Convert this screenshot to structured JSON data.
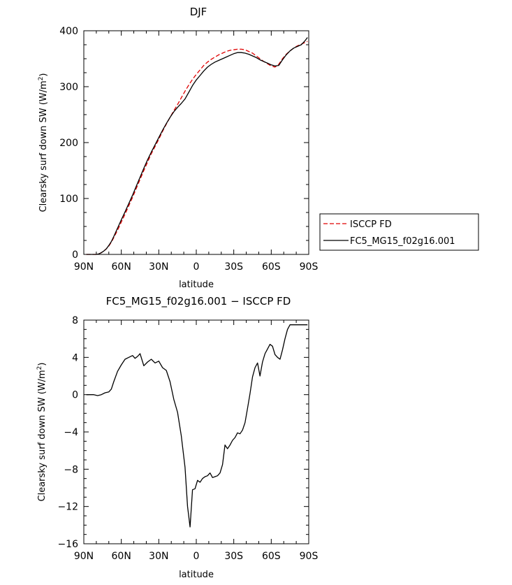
{
  "chart_data": [
    {
      "type": "line",
      "title": "DJF",
      "xlabel": "latitude",
      "ylabel_main": "Clearsky surf down SW (W/m",
      "ylabel_sup": "2",
      "ylabel_close": ")",
      "xlim": [
        90,
        -90
      ],
      "ylim": [
        0,
        400
      ],
      "xticks": [
        90,
        60,
        30,
        0,
        -30,
        -60,
        -90
      ],
      "xtick_labels": [
        "90N",
        "60N",
        "30N",
        "0",
        "30S",
        "60S",
        "90S"
      ],
      "yticks": [
        0,
        100,
        200,
        300,
        400
      ],
      "ytick_labels": [
        "0",
        "100",
        "200",
        "300",
        "400"
      ],
      "legend_position": "right",
      "series": [
        {
          "name": "ISCCP FD",
          "color": "#e00000",
          "dash": "dashed",
          "x": [
            88,
            85,
            82,
            80,
            78,
            76,
            74,
            72,
            70,
            68,
            66,
            64,
            62,
            60,
            57,
            54,
            51,
            48,
            45,
            42,
            39,
            36,
            33,
            30,
            27,
            24,
            21,
            18,
            15,
            12,
            9,
            6,
            3,
            0,
            -3,
            -6,
            -9,
            -12,
            -15,
            -18,
            -21,
            -24,
            -27,
            -30,
            -33,
            -36,
            -39,
            -42,
            -45,
            -48,
            -51,
            -54,
            -57,
            -60,
            -63,
            -66,
            -69,
            -72,
            -75,
            -78,
            -81,
            -84,
            -87,
            -89
          ],
          "y": [
            0,
            0,
            0,
            0,
            1,
            3,
            6,
            10,
            15,
            22,
            30,
            39,
            48,
            58,
            72,
            87,
            102,
            118,
            134,
            150,
            165,
            180,
            193,
            206,
            220,
            233,
            245,
            257,
            268,
            280,
            292,
            303,
            313,
            322,
            330,
            338,
            344,
            349,
            353,
            357,
            360,
            363,
            365,
            366,
            367,
            367,
            366,
            363,
            360,
            355,
            350,
            345,
            341,
            337,
            335,
            340,
            350,
            358,
            364,
            369,
            373,
            376,
            379,
            381
          ]
        },
        {
          "name": "FC5_MG15_f02g16.001",
          "color": "#000000",
          "dash": "solid",
          "x": [
            88,
            85,
            82,
            80,
            78,
            76,
            74,
            72,
            70,
            68,
            66,
            64,
            62,
            60,
            57,
            54,
            51,
            48,
            45,
            42,
            39,
            36,
            33,
            30,
            27,
            24,
            21,
            18,
            15,
            12,
            9,
            6,
            3,
            0,
            -3,
            -6,
            -9,
            -12,
            -15,
            -18,
            -21,
            -24,
            -27,
            -30,
            -33,
            -36,
            -39,
            -42,
            -45,
            -48,
            -51,
            -54,
            -57,
            -60,
            -63,
            -66,
            -69,
            -72,
            -75,
            -78,
            -81,
            -84,
            -87,
            -89
          ],
          "y": [
            0,
            0,
            0,
            0,
            1,
            3,
            6,
            10,
            16,
            23,
            32,
            42,
            52,
            62,
            76,
            91,
            106,
            122,
            138,
            154,
            169,
            183,
            196,
            209,
            222,
            234,
            245,
            255,
            263,
            270,
            278,
            290,
            302,
            312,
            320,
            328,
            335,
            340,
            344,
            347,
            350,
            353,
            356,
            359,
            361,
            361,
            360,
            358,
            355,
            352,
            348,
            345,
            342,
            339,
            337,
            338,
            348,
            357,
            364,
            369,
            372,
            375,
            382,
            388
          ]
        }
      ]
    },
    {
      "type": "line",
      "title": "FC5_MG15_f02g16.001 − ISCCP FD",
      "xlabel": "latitude",
      "ylabel_main": "Clearsky surf down SW (W/m",
      "ylabel_sup": "2",
      "ylabel_close": ")",
      "xlim": [
        90,
        -90
      ],
      "ylim": [
        -16,
        8
      ],
      "xticks": [
        90,
        60,
        30,
        0,
        -30,
        -60,
        -90
      ],
      "xtick_labels": [
        "90N",
        "60N",
        "30N",
        "0",
        "30S",
        "60S",
        "90S"
      ],
      "yticks": [
        -16,
        -12,
        -8,
        -4,
        0,
        4,
        8
      ],
      "ytick_labels": [
        "−16",
        "−12",
        "−8",
        "−4",
        "0",
        "4",
        "8"
      ],
      "series": [
        {
          "color": "#000000",
          "dash": "solid",
          "x": [
            88,
            85,
            82,
            79,
            76,
            73,
            70,
            68,
            66,
            63,
            60,
            57,
            54,
            51,
            49,
            47,
            45,
            42,
            39,
            36,
            33,
            30,
            27,
            24,
            21,
            18,
            15,
            12,
            9,
            7,
            5,
            3,
            1,
            -1,
            -3,
            -5,
            -7,
            -9,
            -11,
            -13,
            -15,
            -17,
            -19,
            -21,
            -23,
            -25,
            -27,
            -29,
            -31,
            -33,
            -35,
            -37,
            -39,
            -41,
            -43,
            -45,
            -47,
            -49,
            -51,
            -53,
            -55,
            -57,
            -59,
            -61,
            -63,
            -65,
            -67,
            -69,
            -71,
            -73,
            -75,
            -77,
            -79,
            -81,
            -83,
            -85,
            -87,
            -89
          ],
          "y": [
            0,
            0,
            0,
            -0.1,
            0,
            0.2,
            0.3,
            0.6,
            1.4,
            2.5,
            3.2,
            3.8,
            4.0,
            4.2,
            3.9,
            4.1,
            4.4,
            3.1,
            3.5,
            3.8,
            3.4,
            3.6,
            2.9,
            2.6,
            1.4,
            -0.5,
            -1.9,
            -4.4,
            -7.8,
            -12.0,
            -14.2,
            -10.2,
            -10.1,
            -9.2,
            -9.4,
            -9.0,
            -8.8,
            -8.7,
            -8.4,
            -8.9,
            -8.8,
            -8.7,
            -8.4,
            -7.5,
            -5.4,
            -5.8,
            -5.4,
            -4.9,
            -4.6,
            -4.1,
            -4.2,
            -3.8,
            -3.0,
            -1.5,
            0.1,
            1.9,
            2.9,
            3.4,
            2.0,
            3.5,
            4.4,
            4.9,
            5.4,
            5.2,
            4.3,
            4.0,
            3.8,
            4.8,
            6.0,
            7.0,
            7.5,
            7.5,
            7.5,
            7.5,
            7.5,
            7.5,
            7.5,
            7.5
          ]
        }
      ]
    }
  ]
}
